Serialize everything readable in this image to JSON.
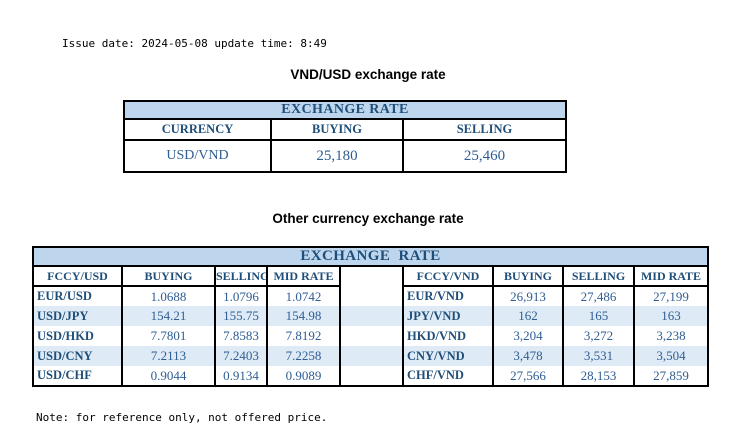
{
  "meta": {
    "issue_line": "Issue date: 2024-05-08 update time: 8:49",
    "note": "Note: for reference only, not offered price."
  },
  "colors": {
    "header_band_bg": "#BDD6EE",
    "stripe_row_bg": "#DEEBF6",
    "heading_text": "#1F4E79",
    "value_text": "#2F5D93",
    "border": "#000000"
  },
  "usd_table": {
    "title": "VND/USD exchange rate",
    "header": "EXCHANGE RATE",
    "columns": [
      "CURRENCY",
      "BUYING",
      "SELLING"
    ],
    "row": [
      "USD/VND",
      "25,180",
      "25,460"
    ]
  },
  "other_table": {
    "title": "Other currency exchange rate",
    "header": "EXCHANGE  RATE",
    "left": {
      "columns": [
        "FCCY/USD",
        "BUYING",
        "SELLING",
        "MID RATE"
      ],
      "rows": [
        [
          "EUR/USD",
          "1.0688",
          "1.0796",
          "1.0742"
        ],
        [
          "USD/JPY",
          "154.21",
          "155.75",
          "154.98"
        ],
        [
          "USD/HKD",
          "7.7801",
          "7.8583",
          "7.8192"
        ],
        [
          "USD/CNY",
          "7.2113",
          "7.2403",
          "7.2258"
        ],
        [
          "USD/CHF",
          "0.9044",
          "0.9134",
          "0.9089"
        ]
      ]
    },
    "right": {
      "columns": [
        "FCCY/VND",
        "BUYING",
        "SELLING",
        "MID RATE"
      ],
      "rows": [
        [
          "EUR/VND",
          "26,913",
          "27,486",
          "27,199"
        ],
        [
          "JPY/VND",
          "162",
          "165",
          "163"
        ],
        [
          "HKD/VND",
          "3,204",
          "3,272",
          "3,238"
        ],
        [
          "CNY/VND",
          "3,478",
          "3,531",
          "3,504"
        ],
        [
          "CHF/VND",
          "27,566",
          "28,153",
          "27,859"
        ]
      ]
    }
  }
}
